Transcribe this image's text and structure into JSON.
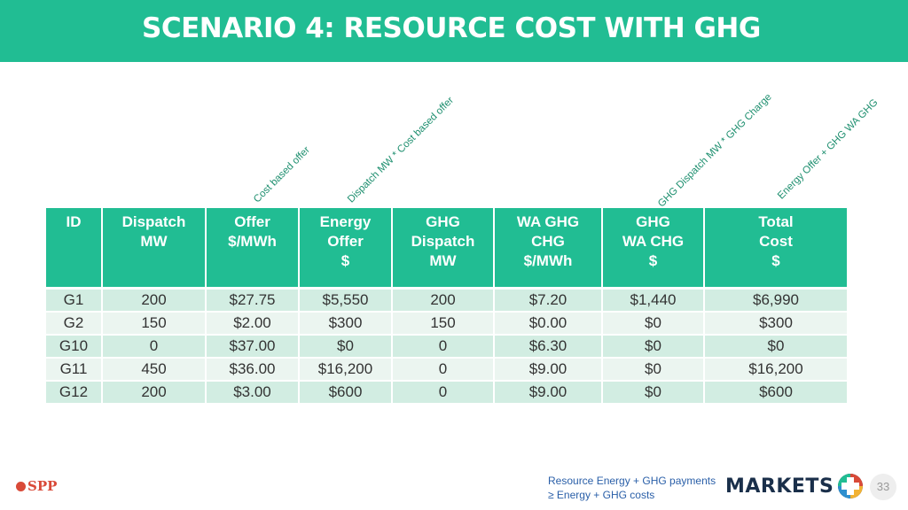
{
  "title": "SCENARIO 4:  RESOURCE COST WITH GHG",
  "annotations": {
    "offer": "Cost based offer",
    "energy": "Dispatch MW * Cost based offer",
    "ghg_wa": "GHG Dispatch MW * GHG Charge",
    "total": "Energy Offer + GHG WA GHG"
  },
  "table": {
    "headers": [
      [
        "ID"
      ],
      [
        "Dispatch",
        "MW"
      ],
      [
        "Offer",
        "$/MWh"
      ],
      [
        "Energy",
        "Offer",
        "$"
      ],
      [
        "GHG",
        "Dispatch",
        "MW"
      ],
      [
        "WA GHG",
        "CHG",
        "$/MWh"
      ],
      [
        "GHG",
        "WA CHG",
        "$"
      ],
      [
        "Total",
        "Cost",
        "$"
      ]
    ],
    "rows": [
      [
        "G1",
        "200",
        "$27.75",
        "$5,550",
        "200",
        "$7.20",
        "$1,440",
        "$6,990"
      ],
      [
        "G2",
        "150",
        "$2.00",
        "$300",
        "150",
        "$0.00",
        "$0",
        "$300"
      ],
      [
        "G10",
        "0",
        "$37.00",
        "$0",
        "0",
        "$6.30",
        "$0",
        "$0"
      ],
      [
        "G11",
        "450",
        "$36.00",
        "$16,200",
        "0",
        "$9.00",
        "$0",
        "$16,200"
      ],
      [
        "G12",
        "200",
        "$3.00",
        "$600",
        "0",
        "$9.00",
        "$0",
        "$600"
      ]
    ]
  },
  "footer": {
    "logo_text": "SPP",
    "note_line1": "Resource Energy + GHG payments",
    "note_line2": "≥ Energy + GHG costs",
    "markets_logo_text": "MARKETS",
    "page_number": "33"
  },
  "colors": {
    "accent": "#21bd93",
    "row_odd": "#d2ede2",
    "row_even": "#ebf5f0",
    "annotation": "#1e8f6f",
    "note": "#2a5fa8",
    "spp_red": "#d94a38",
    "markets_navy": "#1a2f4a"
  }
}
